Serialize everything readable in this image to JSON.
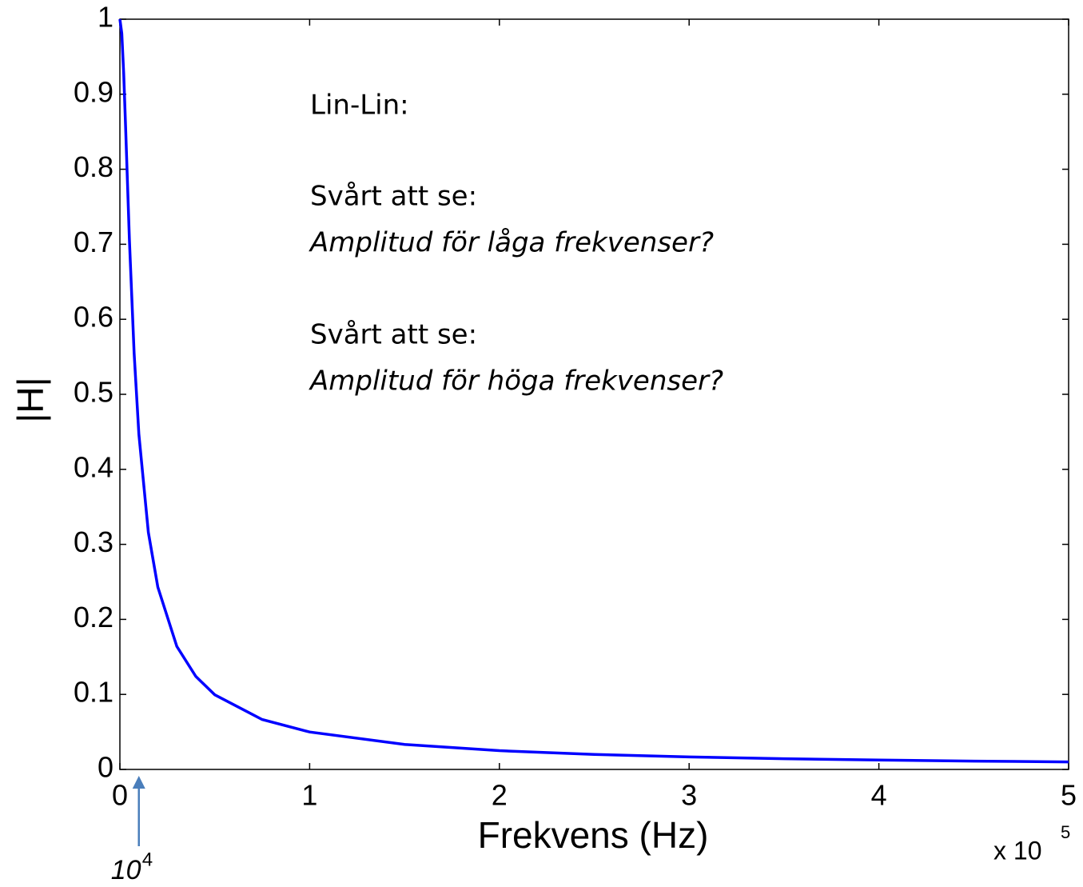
{
  "chart_data": {
    "type": "line",
    "xlabel": "Frekvens (Hz)",
    "ylabel": "|H|",
    "x_multiplier": {
      "base": "x 10",
      "exponent": "5"
    },
    "annotations": [
      "Lin-Lin:",
      "Svårt att se:",
      "Amplitud för låga frekvenser?",
      "Svårt att se:",
      "Amplitud för höga frekvenser?"
    ],
    "marker": {
      "base": "10",
      "exponent": "4",
      "x": 0.1
    },
    "x": [
      0,
      0.01,
      0.02,
      0.03,
      0.05,
      0.075,
      0.1,
      0.15,
      0.2,
      0.3,
      0.4,
      0.5,
      0.75,
      1,
      1.5,
      2,
      2.5,
      3,
      3.5,
      4,
      4.5,
      5
    ],
    "series": [
      {
        "color": "#0000ff",
        "values": [
          1,
          0.981,
          0.928,
          0.857,
          0.707,
          0.555,
          0.447,
          0.316,
          0.243,
          0.164,
          0.124,
          0.0995,
          0.0665,
          0.0499,
          0.0333,
          0.025,
          0.02,
          0.0167,
          0.0143,
          0.0125,
          0.0111,
          0.01
        ]
      }
    ],
    "xlim": [
      0,
      5
    ],
    "ylim": [
      0,
      1
    ],
    "xticks": [
      0,
      1,
      2,
      3,
      4,
      5
    ],
    "yticks": [
      0,
      0.1,
      0.2,
      0.3,
      0.4,
      0.5,
      0.6,
      0.7,
      0.8,
      0.9,
      1
    ],
    "grid": false
  }
}
